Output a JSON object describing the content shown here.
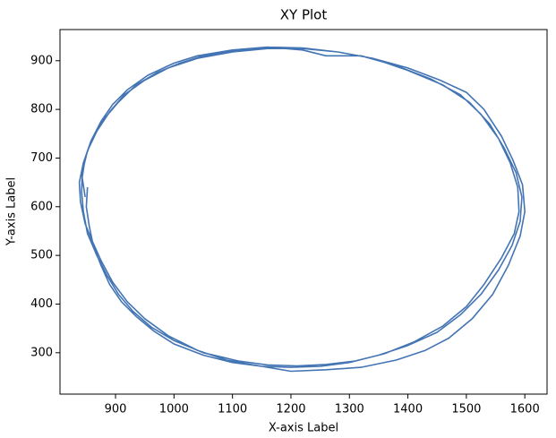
{
  "chart_data": {
    "type": "line",
    "title": "XY Plot",
    "x_label": "X-axis Label",
    "y_label": "Y-axis Label",
    "color": "#4374b3",
    "x": [
      852,
      850,
      855,
      862,
      875,
      890,
      910,
      935,
      965,
      1000,
      1050,
      1100,
      1150,
      1200,
      1250,
      1300,
      1350,
      1400,
      1450,
      1490,
      1525,
      1555,
      1578,
      1592,
      1595,
      1585,
      1565,
      1540,
      1505,
      1460,
      1400,
      1340,
      1280,
      1220,
      1160,
      1100,
      1040,
      990,
      950,
      915,
      890,
      868,
      852,
      843,
      842,
      845,
      852,
      868,
      885,
      905,
      930,
      962,
      1000,
      1050,
      1110,
      1160,
      1210,
      1260,
      1310,
      1360,
      1410,
      1460,
      1500,
      1530,
      1560,
      1582,
      1590,
      1588,
      1575,
      1555,
      1525,
      1490,
      1440,
      1380,
      1320,
      1260,
      1220,
      1160,
      1100,
      1040,
      1000,
      955,
      920,
      895,
      875,
      858,
      845,
      838,
      840,
      848,
      860,
      875,
      895,
      920,
      950,
      990,
      1040,
      1090,
      1150,
      1200,
      1260,
      1320,
      1380,
      1430,
      1470,
      1510,
      1545,
      1572,
      1592,
      1600,
      1596,
      1580,
      1560,
      1530,
      1500,
      1455,
      1400,
      1340,
      1280,
      1220,
      1160,
      1100,
      1050,
      1010,
      970,
      935,
      905,
      880,
      860,
      848,
      843,
      848
    ],
    "values": [
      640,
      600,
      560,
      520,
      480,
      440,
      405,
      375,
      345,
      318,
      295,
      280,
      272,
      270,
      272,
      280,
      295,
      315,
      342,
      378,
      420,
      470,
      520,
      570,
      620,
      670,
      720,
      770,
      815,
      850,
      880,
      905,
      918,
      925,
      925,
      918,
      905,
      885,
      860,
      830,
      795,
      755,
      715,
      670,
      630,
      590,
      545,
      500,
      460,
      420,
      385,
      352,
      325,
      300,
      283,
      275,
      273,
      276,
      283,
      298,
      322,
      355,
      395,
      440,
      495,
      545,
      590,
      640,
      690,
      740,
      790,
      830,
      862,
      890,
      910,
      910,
      922,
      928,
      922,
      910,
      895,
      870,
      840,
      810,
      775,
      735,
      690,
      650,
      610,
      565,
      530,
      490,
      445,
      405,
      370,
      335,
      305,
      285,
      272,
      262,
      265,
      270,
      285,
      305,
      330,
      370,
      420,
      480,
      540,
      590,
      645,
      695,
      745,
      800,
      835,
      860,
      885,
      905,
      918,
      926,
      928,
      920,
      910,
      895,
      875,
      850,
      815,
      780,
      740,
      700,
      660,
      620
    ],
    "xlim": [
      805,
      1638
    ],
    "ylim": [
      215,
      964
    ],
    "xticks": [
      900,
      1000,
      1100,
      1200,
      1300,
      1400,
      1500,
      1600
    ],
    "yticks": [
      300,
      400,
      500,
      600,
      700,
      800,
      900
    ]
  }
}
